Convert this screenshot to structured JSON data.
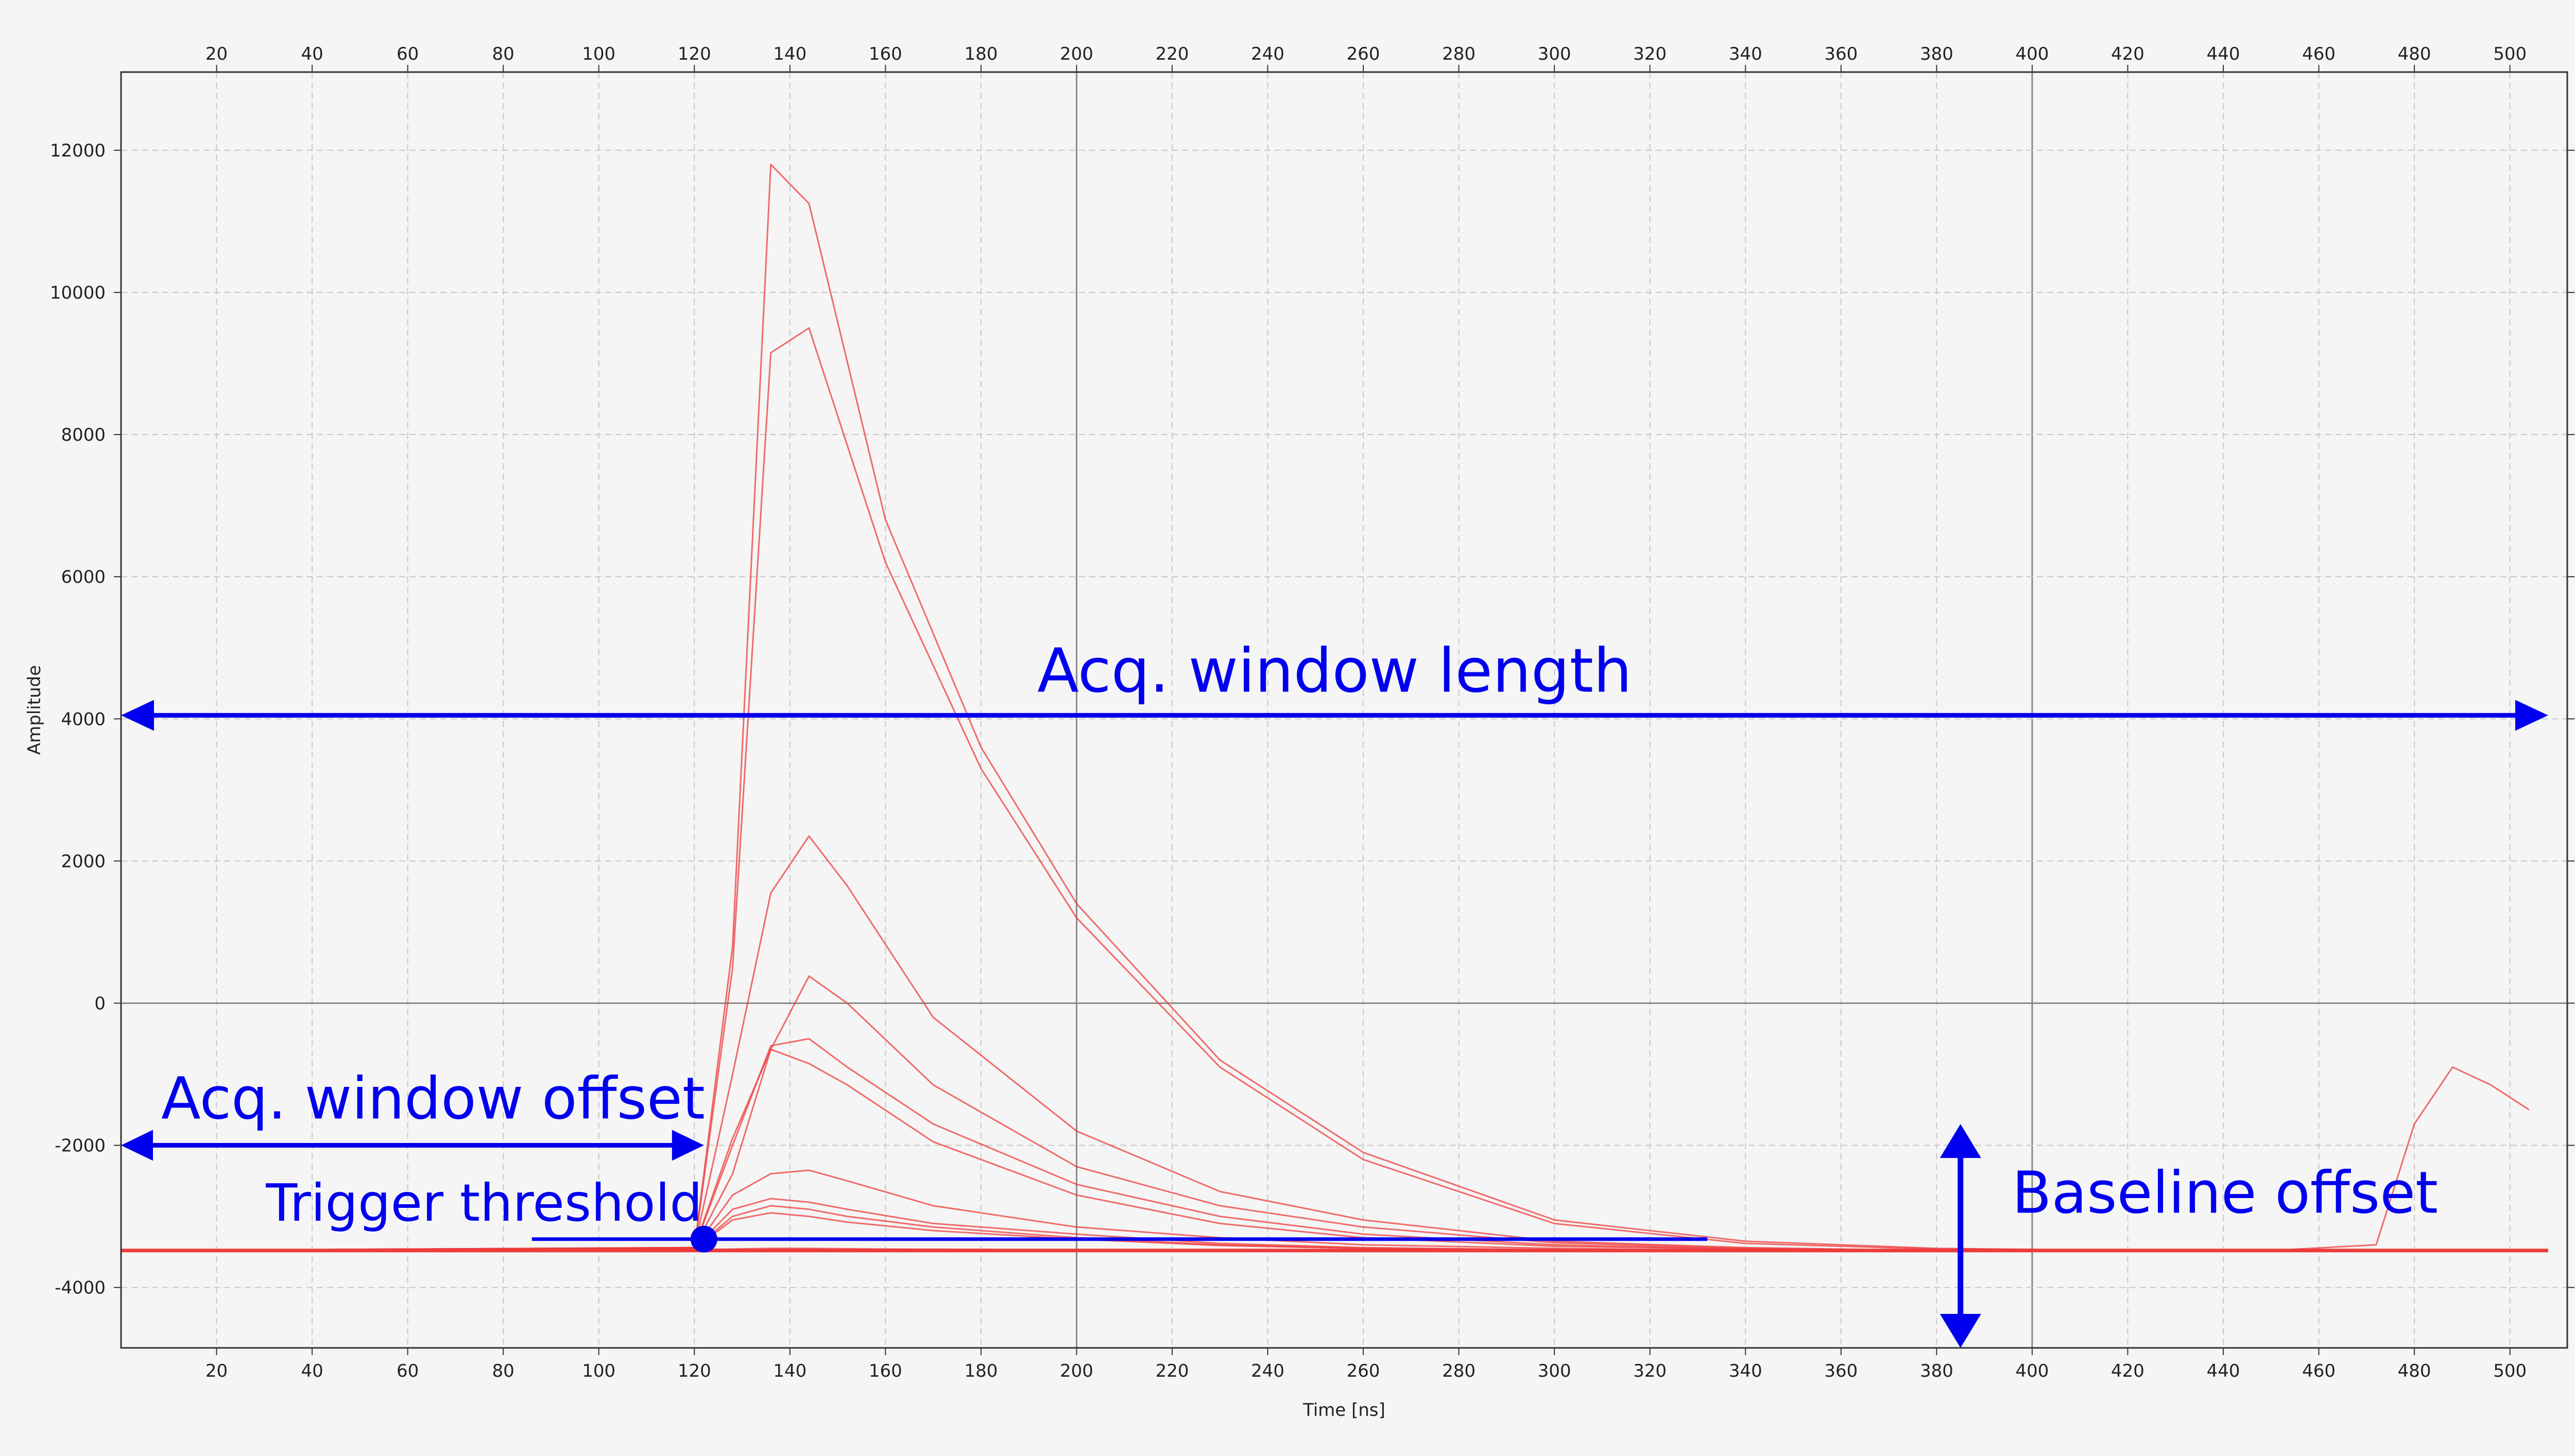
{
  "chart_data": {
    "type": "line",
    "xlabel": "Time [ns]",
    "ylabel": "Amplitude",
    "xlim": [
      0,
      512
    ],
    "ylim": [
      -4850,
      13100
    ],
    "x_ticks": [
      20,
      40,
      60,
      80,
      100,
      120,
      140,
      160,
      180,
      200,
      220,
      240,
      260,
      280,
      300,
      320,
      340,
      360,
      380,
      400,
      420,
      440,
      460,
      480,
      500
    ],
    "y_ticks": [
      -4000,
      -2000,
      0,
      2000,
      4000,
      6000,
      8000,
      10000,
      12000
    ],
    "x_ticks_mirrored_top": true,
    "y_ticks_mirrored_right": true,
    "grid": "dashed",
    "major_gridlines_x": [
      200,
      400
    ],
    "major_gridline_y": 0,
    "series_color": "#ee3b3b",
    "series": [
      {
        "x": [
          0,
          120,
          128,
          136,
          144,
          160,
          180,
          200,
          230,
          260,
          300,
          340,
          380,
          420,
          460,
          500
        ],
        "values": [
          -3480,
          -3460,
          800,
          11800,
          11250,
          6800,
          3600,
          1400,
          -800,
          -2100,
          -3050,
          -3350,
          -3450,
          -3480,
          -3480,
          -3480
        ]
      },
      {
        "x": [
          0,
          120,
          128,
          136,
          144,
          160,
          180,
          200,
          230,
          260,
          300,
          340,
          380,
          420,
          460,
          500
        ],
        "values": [
          -3470,
          -3460,
          500,
          9150,
          9500,
          6200,
          3300,
          1200,
          -900,
          -2200,
          -3100,
          -3380,
          -3460,
          -3470,
          -3470,
          -3470
        ]
      },
      {
        "x": [
          0,
          120,
          128,
          136,
          144,
          152,
          170,
          200,
          230,
          260,
          300,
          340,
          380,
          420,
          460,
          500
        ],
        "values": [
          -3490,
          -3440,
          -1000,
          1550,
          2350,
          1650,
          -200,
          -1800,
          -2650,
          -3050,
          -3350,
          -3440,
          -3480,
          -3490,
          -3490,
          -3490
        ]
      },
      {
        "x": [
          0,
          120,
          128,
          136,
          144,
          152,
          170,
          200,
          230,
          260,
          300,
          340,
          380,
          420,
          460,
          500
        ],
        "values": [
          -3480,
          -3440,
          -1900,
          -650,
          380,
          0,
          -1150,
          -2300,
          -2850,
          -3150,
          -3370,
          -3450,
          -3480,
          -3480,
          -3480,
          -3480
        ]
      },
      {
        "x": [
          0,
          120,
          128,
          136,
          144,
          152,
          170,
          200,
          230,
          260,
          300,
          340,
          380,
          420,
          460,
          500
        ],
        "values": [
          -3480,
          -3440,
          -2000,
          -600,
          -500,
          -900,
          -1700,
          -2550,
          -3000,
          -3250,
          -3400,
          -3460,
          -3480,
          -3480,
          -3480,
          -3480
        ]
      },
      {
        "x": [
          0,
          120,
          128,
          136,
          144,
          152,
          170,
          200,
          230,
          260,
          300,
          340,
          380,
          420,
          460,
          500
        ],
        "values": [
          -3480,
          -3440,
          -2400,
          -650,
          -850,
          -1150,
          -1950,
          -2700,
          -3100,
          -3300,
          -3420,
          -3460,
          -3480,
          -3480,
          -3480,
          -3480
        ]
      },
      {
        "x": [
          0,
          120,
          128,
          136,
          144,
          152,
          170,
          200,
          230,
          260,
          300,
          340,
          380,
          420,
          460,
          500
        ],
        "values": [
          -3490,
          -3450,
          -2700,
          -2400,
          -2350,
          -2500,
          -2850,
          -3150,
          -3300,
          -3400,
          -3450,
          -3480,
          -3490,
          -3490,
          -3490,
          -3490
        ]
      },
      {
        "x": [
          0,
          120,
          128,
          136,
          144,
          152,
          170,
          200,
          230,
          260,
          300,
          340,
          380,
          420,
          460,
          500
        ],
        "values": [
          -3490,
          -3450,
          -2900,
          -2750,
          -2800,
          -2900,
          -3100,
          -3250,
          -3380,
          -3440,
          -3470,
          -3490,
          -3490,
          -3490,
          -3490,
          -3490
        ]
      },
      {
        "x": [
          0,
          120,
          128,
          136,
          144,
          152,
          170,
          200,
          230,
          260,
          300,
          340,
          380,
          420,
          460,
          500
        ],
        "values": [
          -3480,
          -3450,
          -3000,
          -2850,
          -2900,
          -3000,
          -3150,
          -3300,
          -3400,
          -3450,
          -3470,
          -3480,
          -3480,
          -3480,
          -3480,
          -3480
        ]
      },
      {
        "x": [
          0,
          120,
          128,
          136,
          144,
          152,
          170,
          200,
          230,
          260,
          300,
          340,
          380,
          420,
          460,
          500
        ],
        "values": [
          -3490,
          -3450,
          -3050,
          -2950,
          -3000,
          -3080,
          -3200,
          -3320,
          -3410,
          -3450,
          -3480,
          -3490,
          -3490,
          -3490,
          -3490,
          -3490
        ]
      },
      {
        "x": [
          0,
          120,
          128,
          136,
          144,
          160,
          200,
          250,
          300,
          350,
          400,
          450,
          472,
          480,
          488,
          496,
          504
        ],
        "values": [
          -3480,
          -3470,
          -3460,
          -3450,
          -3450,
          -3460,
          -3470,
          -3480,
          -3480,
          -3480,
          -3480,
          -3480,
          -3400,
          -1700,
          -900,
          -1150,
          -1500
        ]
      }
    ],
    "baseline_value": -3480,
    "annotations": {
      "window_length": {
        "text": "Acq. window length",
        "x_from": 0,
        "x_to": 508,
        "y": 4050
      },
      "window_offset": {
        "text": "Acq. window offset",
        "x_from": 0,
        "x_to": 122,
        "y": -2000
      },
      "trigger": {
        "text": "Trigger threshold",
        "x_point": 122,
        "y": -3320,
        "line_x_from": 86,
        "line_x_to": 332
      },
      "baseline": {
        "text": "Baseline offset",
        "x": 385,
        "y_from": -4850,
        "y_to": -1700
      }
    },
    "annotation_color": "#0000ee"
  }
}
